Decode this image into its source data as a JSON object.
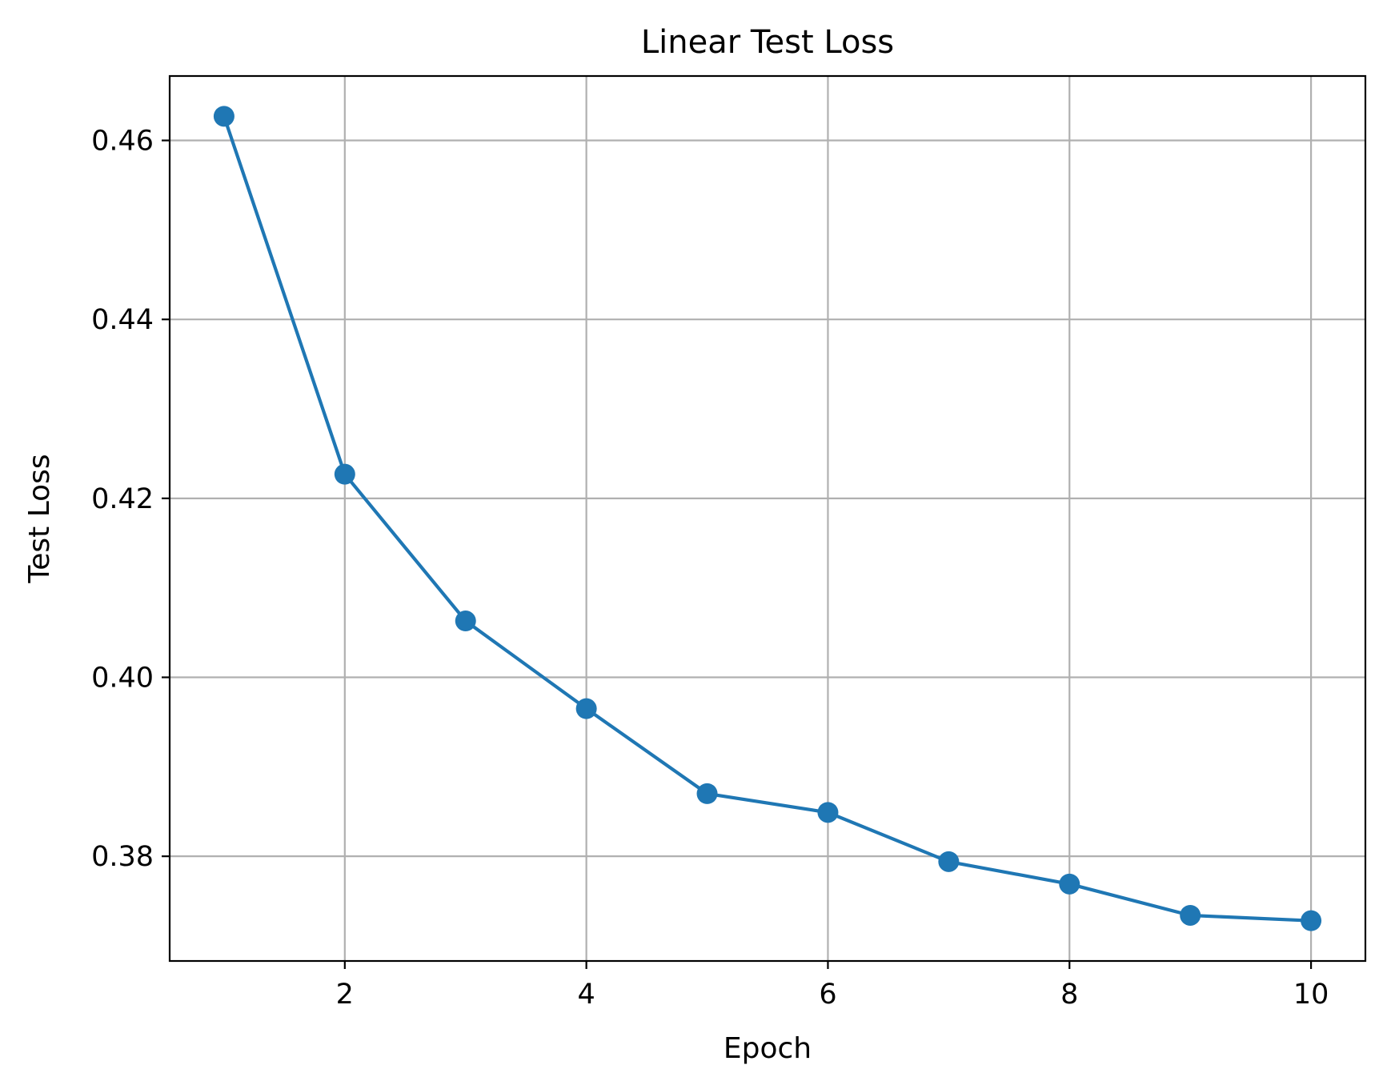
{
  "chart_data": {
    "type": "line",
    "title": "Linear Test Loss",
    "xlabel": "Epoch",
    "ylabel": "Test Loss",
    "xlim": [
      0.55,
      10.45
    ],
    "ylim": [
      0.3683,
      0.4672
    ],
    "xticks": [
      2,
      4,
      6,
      8,
      10
    ],
    "yticks": [
      0.38,
      0.4,
      0.42,
      0.44,
      0.46
    ],
    "xtick_labels": [
      "2",
      "4",
      "6",
      "8",
      "10"
    ],
    "ytick_labels": [
      "0.38",
      "0.40",
      "0.42",
      "0.44",
      "0.46"
    ],
    "grid": true,
    "color": "#1f77b4",
    "marker": "circle",
    "series": [
      {
        "x": [
          1,
          2,
          3,
          4,
          5,
          6,
          7,
          8,
          9,
          10
        ],
        "y": [
          0.4627,
          0.4227,
          0.4063,
          0.3965,
          0.387,
          0.3849,
          0.3794,
          0.3769,
          0.3734,
          0.3728
        ]
      }
    ]
  }
}
